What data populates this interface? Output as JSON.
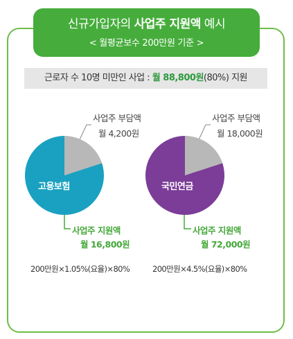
{
  "header": {
    "title_prefix": "신규가입자의 ",
    "title_bold": "사업주 지원액",
    "title_suffix": " 예시",
    "subtitle": "< 월평균보수 200만원 기준 >"
  },
  "summary": {
    "prefix": "근로자 수 10명 미만인 사업 : ",
    "highlight": "월 88,800원",
    "suffix": "(80%) 지원"
  },
  "charts": [
    {
      "label": "고용보험",
      "burden_label": "사업주 부담액",
      "burden_value": "월 4,200원",
      "support_label": "사업주 지원액",
      "support_value": "월 16,800원",
      "formula": "200만원×1.05%(요율)×80%"
    },
    {
      "label": "국민연금",
      "burden_label": "사업주 부담액",
      "burden_value": "월 18,000원",
      "support_label": "사업주 지원액",
      "support_value": "월 72,000원",
      "formula": "200만원×4.5%(요율)×80%"
    }
  ],
  "chart_data": [
    {
      "type": "pie",
      "center_label": "고용보험",
      "slices": [
        {
          "label": "사업주 부담액",
          "value": 4200,
          "color": "#b8b8b8"
        },
        {
          "label": "사업주 지원액",
          "value": 16800,
          "color": "#1aa1c1"
        }
      ]
    },
    {
      "type": "pie",
      "center_label": "국민연금",
      "slices": [
        {
          "label": "사업주 부담액",
          "value": 18000,
          "color": "#b8b8b8"
        },
        {
          "label": "사업주 지원액",
          "value": 72000,
          "color": "#7b3d97"
        }
      ]
    }
  ],
  "colors": {
    "green": "#46ad3c",
    "teal": "#1aa1c1",
    "purple": "#7b3d97",
    "gray": "#b8b8b8"
  }
}
